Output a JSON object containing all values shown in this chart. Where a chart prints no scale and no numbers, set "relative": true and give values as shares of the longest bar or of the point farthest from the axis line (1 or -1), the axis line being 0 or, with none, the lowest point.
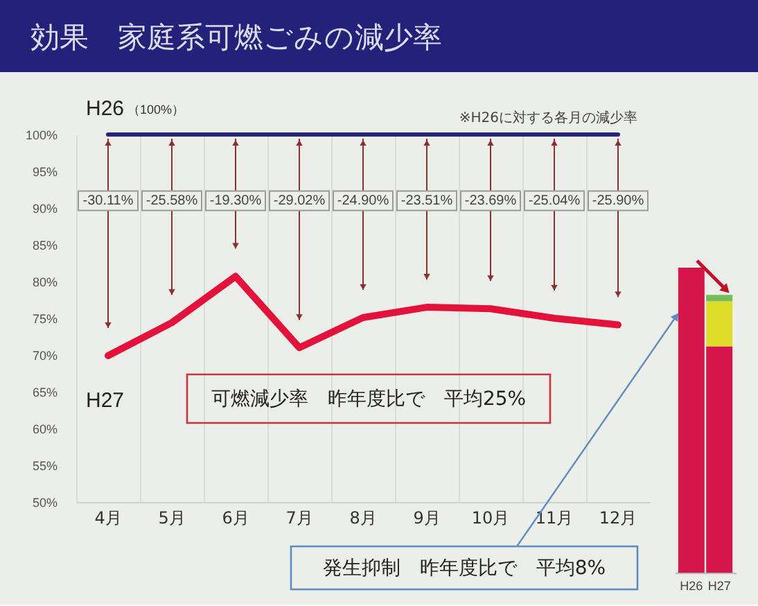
{
  "chart_data": [
    {
      "type": "line",
      "title": "効果　家庭系可燃ごみの減少率",
      "categories": [
        "4月",
        "5月",
        "6月",
        "7月",
        "8月",
        "9月",
        "10月",
        "11月",
        "12月"
      ],
      "series": [
        {
          "name": "H26",
          "color": "#26247a",
          "values": [
            100,
            100,
            100,
            100,
            100,
            100,
            100,
            100,
            100
          ]
        },
        {
          "name": "H27",
          "color": "#e3123a",
          "values": [
            69.9,
            74.4,
            80.7,
            71.0,
            75.1,
            76.5,
            76.3,
            75.0,
            74.1
          ]
        }
      ],
      "ylim": [
        50,
        100
      ],
      "yticks": [
        {
          "value": 50,
          "label": "50%"
        },
        {
          "value": 55,
          "label": "55%"
        },
        {
          "value": 60,
          "label": "60%"
        },
        {
          "value": 65,
          "label": "65%"
        },
        {
          "value": 70,
          "label": "70%"
        },
        {
          "value": 75,
          "label": "75%"
        },
        {
          "value": 80,
          "label": "80%"
        },
        {
          "value": 85,
          "label": "85%"
        },
        {
          "value": 90,
          "label": "90%"
        },
        {
          "value": 95,
          "label": "95%"
        },
        {
          "value": 100,
          "label": "100%"
        }
      ],
      "grid": "x",
      "annotations": [
        "（100%）",
        "※H26に対する各月の減少率",
        {
          "text": "-30.11%",
          "x": "4月",
          "y": 91
        },
        {
          "text": "-25.58%",
          "x": "5月",
          "y": 91
        },
        {
          "text": "-19.30%",
          "x": "6月",
          "y": 91
        },
        {
          "text": "-29.02%",
          "x": "7月",
          "y": 91
        },
        {
          "text": "-24.90%",
          "x": "8月",
          "y": 91
        },
        {
          "text": "-23.51%",
          "x": "9月",
          "y": 91
        },
        {
          "text": "-23.69%",
          "x": "10月",
          "y": 91
        },
        {
          "text": "-25.04%",
          "x": "11月",
          "y": 91
        },
        {
          "text": "-25.90%",
          "x": "12月",
          "y": 91
        },
        "可燃減少率　昨年度比で　平均25%",
        "発生抑制　昨年度比で　平均8%"
      ]
    },
    {
      "type": "bar",
      "categories": [
        "H26",
        "H27"
      ],
      "stacked": true,
      "relative": true,
      "series": [
        {
          "color": "#d5164a",
          "values": [
            1,
            0.742
          ]
        },
        {
          "color": "#dede2a",
          "values": [
            null,
            0.148
          ]
        },
        {
          "color": "#74bd5a",
          "values": [
            null,
            0.021
          ]
        }
      ]
    }
  ]
}
